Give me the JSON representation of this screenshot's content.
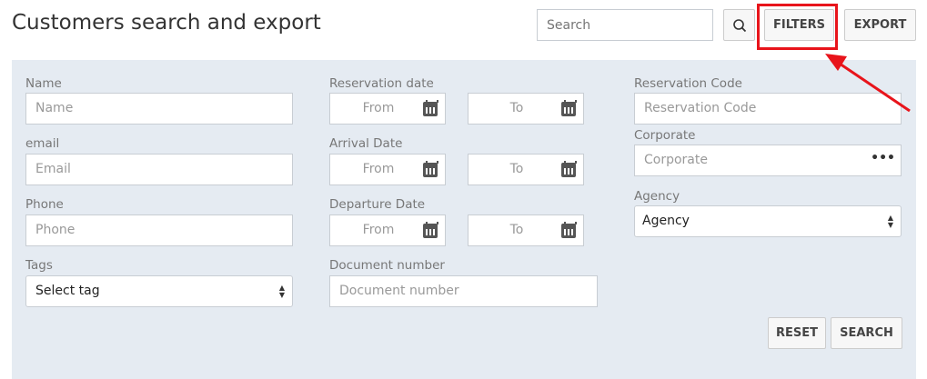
{
  "header": {
    "title": "Customers search and export",
    "search_placeholder": "Search",
    "filters_label": "FILTERS",
    "export_label": "EXPORT"
  },
  "filters": {
    "name": {
      "label": "Name",
      "placeholder": "Name"
    },
    "email": {
      "label": "email",
      "placeholder": "Email"
    },
    "phone": {
      "label": "Phone",
      "placeholder": "Phone"
    },
    "tags": {
      "label": "Tags",
      "value": "Select tag"
    },
    "reservation_date": {
      "label": "Reservation date",
      "from": "From",
      "to": "To"
    },
    "arrival_date": {
      "label": "Arrival Date",
      "from": "From",
      "to": "To"
    },
    "departure_date": {
      "label": "Departure Date",
      "from": "From",
      "to": "To"
    },
    "document_number": {
      "label": "Document number",
      "placeholder": "Document number"
    },
    "reservation_code": {
      "label": "Reservation Code",
      "placeholder": "Reservation Code"
    },
    "corporate": {
      "label": "Corporate",
      "placeholder": "Corporate"
    },
    "agency": {
      "label": "Agency",
      "value": "Agency"
    },
    "reset_label": "RESET",
    "search_label": "SEARCH"
  },
  "annotation": {
    "color": "#e8141b"
  }
}
